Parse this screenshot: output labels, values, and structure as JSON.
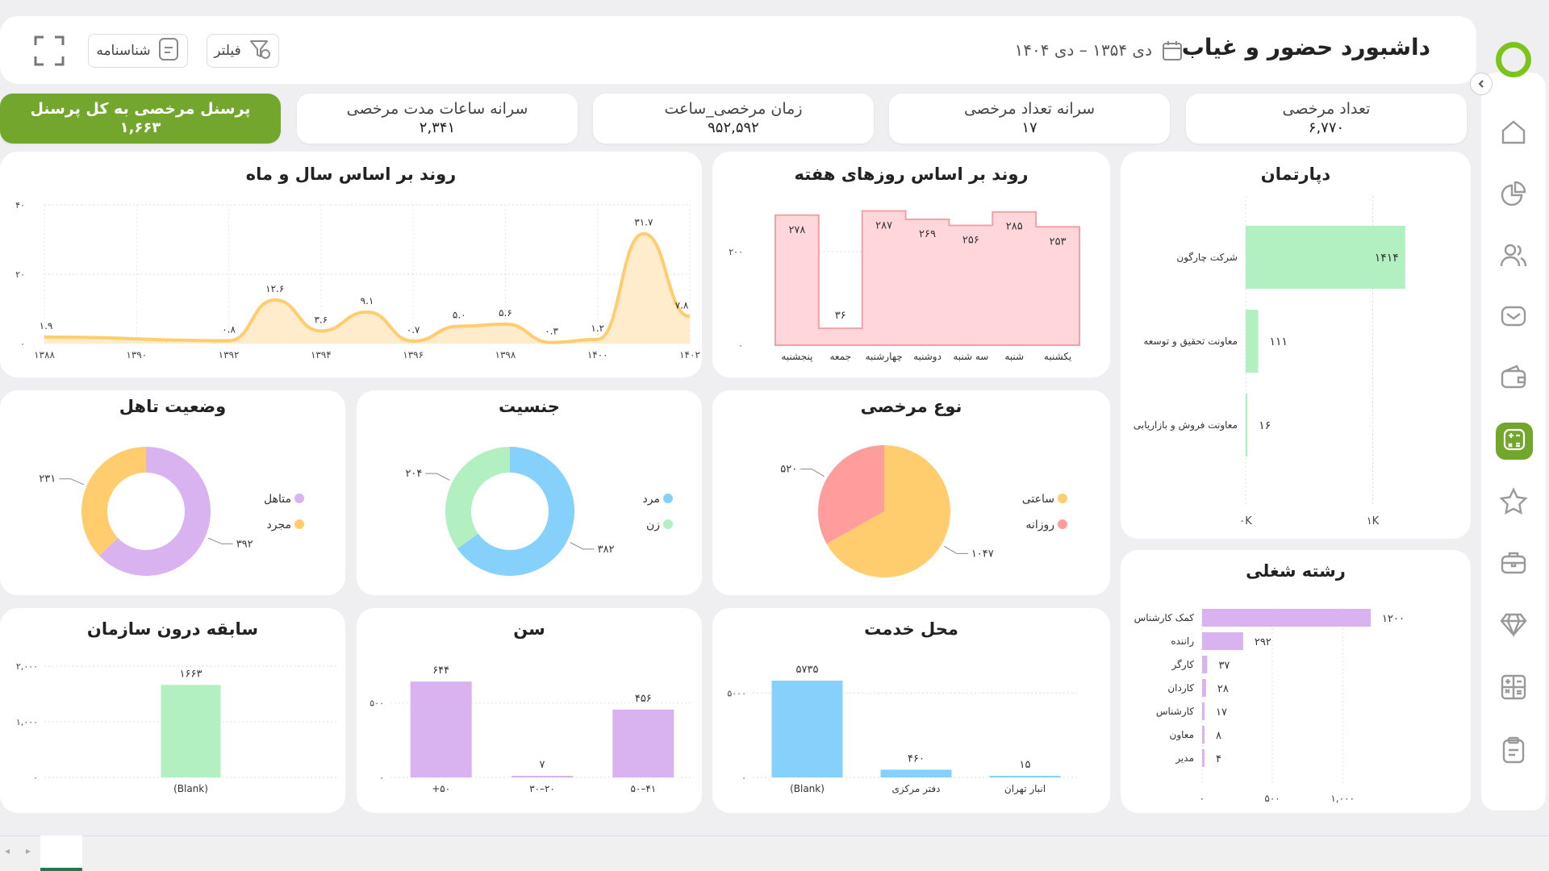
{
  "header": {
    "title": "داشبورد حضور و غیاب",
    "date_range": "دی ۱۳۵۴ – دی ۱۴۰۴",
    "filter_label": "فیلتر",
    "id_label": "شناسنامه"
  },
  "kpis": [
    {
      "title": "تعداد مرخصی",
      "value": "۶,۷۷۰"
    },
    {
      "title": "سرانه تعداد مرخصی",
      "value": "۱۷"
    },
    {
      "title": "زمان مرخصی_ساعت",
      "value": "۹۵۲,۵۹۲"
    },
    {
      "title": "سرانه ساعات مدت مرخصی",
      "value": "۲,۳۴۱"
    },
    {
      "title": "پرسنل مرخصی به کل پرسنل",
      "value": "۱,۶۶۳"
    }
  ],
  "titles": {
    "trend_year": "روند بر اساس سال و ماه",
    "trend_week": "روند بر اساس روزهای هفته",
    "department": "دپارتمان",
    "marital": "وضعیت تاهل",
    "gender": "جنسیت",
    "leave_type": "نوع مرخصی",
    "job": "رشته شغلی",
    "tenure": "سابقه درون سازمان",
    "age": "سن",
    "location": "محل خدمت"
  },
  "colors": {
    "accent": "#73a62c",
    "yellow": "#ffcd6e",
    "yellow_fill": "#ffeccc",
    "pink": "#ffd6da",
    "pink_line": "#f4a0a8",
    "green": "#b2f0c2",
    "blue": "#85d1fb",
    "purple": "#d9b2f0",
    "red": "#ff9d9d"
  },
  "chart_data": [
    {
      "id": "trend_year",
      "type": "area",
      "title": "روند بر اساس سال و ماه",
      "x_ticks": [
        "۱۳۸۸",
        "۱۳۹۰",
        "۱۳۹۲",
        "۱۳۹۴",
        "۱۳۹۶",
        "۱۳۹۸",
        "۱۴۰۰",
        "۱۴۰۲"
      ],
      "y_ticks": [
        "۰",
        "۲۰",
        "۴۰"
      ],
      "ylim": [
        0,
        40
      ],
      "xlim": [
        1388,
        1402
      ],
      "x": [
        1388,
        1392,
        1393,
        1394,
        1395,
        1396,
        1397,
        1398,
        1399,
        1400,
        1401,
        1402
      ],
      "values": [
        1.9,
        0.8,
        12.6,
        3.6,
        9.1,
        0.7,
        5.0,
        5.6,
        0.3,
        1.2,
        31.7,
        7.8
      ],
      "labels": [
        "۱.۹",
        "۰.۸",
        "۱۲.۶",
        "۳.۶",
        "۹.۱",
        "۰.۷",
        "۵.۰",
        "۵.۶",
        "۰.۳",
        "۱.۲",
        "۳۱.۷",
        "۷.۸"
      ]
    },
    {
      "id": "trend_week",
      "type": "area",
      "title": "روند بر اساس روزهای هفته",
      "categories": [
        "پنجشنبه",
        "جمعه",
        "چهارشنبه",
        "دوشنبه",
        "سه شنبه",
        "شنبه",
        "یکشنبه"
      ],
      "values": [
        278,
        36,
        287,
        269,
        256,
        285,
        253
      ],
      "labels": [
        "۲۷۸",
        "۳۶",
        "۲۸۷",
        "۲۶۹",
        "۲۵۶",
        "۲۸۵",
        "۲۵۳"
      ],
      "y_ticks": [
        "۰",
        "۲۰۰"
      ],
      "ylim": [
        0,
        300
      ]
    },
    {
      "id": "department",
      "type": "bar",
      "title": "دپارتمان",
      "categories": [
        "شرکت چارگون",
        "معاونت تحقیق و توسعه",
        "معاونت فروش و بازاریابی"
      ],
      "values": [
        1414,
        111,
        16
      ],
      "labels": [
        "۱۴۱۴",
        "۱۱۱",
        "۱۶"
      ],
      "x_ticks": [
        "۰K",
        "۱K"
      ],
      "xlim": [
        0,
        1414
      ]
    },
    {
      "id": "job",
      "type": "bar",
      "title": "رشته شغلی",
      "categories": [
        "کمک کارشناس",
        "راننده",
        "کارگر",
        "کاردان",
        "کارشناس",
        "معاون",
        "مدیر"
      ],
      "values": [
        1200,
        292,
        37,
        28,
        17,
        8,
        4
      ],
      "labels": [
        "۱۲۰۰",
        "۲۹۲",
        "۳۷",
        "۲۸",
        "۱۷",
        "۸",
        "۴"
      ],
      "x_ticks": [
        "۰",
        "۵۰۰",
        "۱,۰۰۰"
      ],
      "xlim": [
        0,
        1200
      ]
    },
    {
      "id": "marital",
      "type": "pie",
      "title": "وضعیت تاهل",
      "categories": [
        "متاهل",
        "مجرد"
      ],
      "values": [
        392,
        231
      ],
      "labels": [
        "۳۹۲",
        "۲۳۱"
      ]
    },
    {
      "id": "gender",
      "type": "pie",
      "title": "جنسیت",
      "categories": [
        "مرد",
        "زن"
      ],
      "values": [
        382,
        204
      ],
      "labels": [
        "۳۸۲",
        "۲۰۴"
      ]
    },
    {
      "id": "leave_type",
      "type": "pie",
      "title": "نوع مرخصی",
      "categories": [
        "ساعتی",
        "روزانه"
      ],
      "values": [
        1047,
        520
      ],
      "labels": [
        "۱۰۴۷",
        "۵۲۰"
      ]
    },
    {
      "id": "tenure",
      "type": "bar",
      "title": "سابقه درون سازمان",
      "categories": [
        "(Blank)"
      ],
      "values": [
        1663
      ],
      "labels": [
        "۱۶۶۳"
      ],
      "y_ticks": [
        "۰",
        "۱,۰۰۰",
        "۲,۰۰۰"
      ],
      "ylim": [
        0,
        2000
      ]
    },
    {
      "id": "age",
      "type": "bar",
      "title": "سن",
      "categories": [
        "+۵۰",
        "۳۰–۲۰",
        "۵۰–۴۱"
      ],
      "values": [
        644,
        7,
        456
      ],
      "labels": [
        "۶۴۴",
        "۷",
        "۴۵۶"
      ],
      "y_ticks": [
        "۰",
        "۵۰۰"
      ],
      "ylim": [
        0,
        650
      ]
    },
    {
      "id": "location",
      "type": "bar",
      "title": "محل خدمت",
      "categories": [
        "(Blank)",
        "دفتر مرکزی",
        "انبار تهران"
      ],
      "values": [
        5735,
        460,
        15
      ],
      "labels": [
        "۵۷۳۵",
        "۴۶۰",
        "۱۵"
      ],
      "y_ticks": [
        "۰",
        "۵۰۰۰"
      ],
      "ylim": [
        0,
        5735
      ]
    }
  ]
}
